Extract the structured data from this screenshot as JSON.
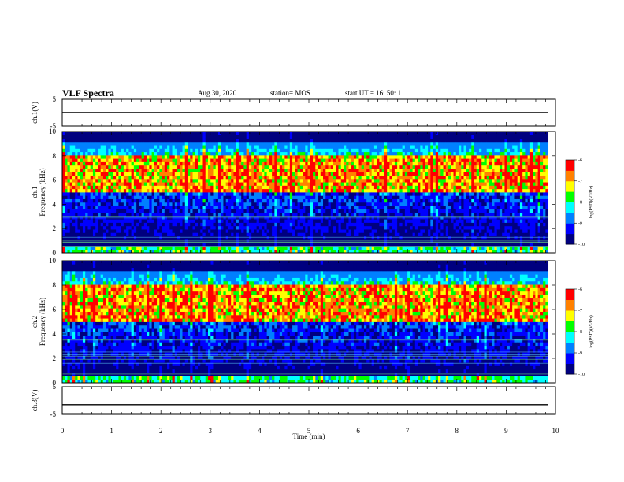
{
  "header": {
    "title": "VLF Spectra",
    "date": "Aug.30, 2020",
    "station": "station= MOS",
    "start": "start  UT =   16: 50: 1"
  },
  "chart_data": [
    {
      "type": "line",
      "panel": "waveform-ch1",
      "ylabel": "ch.1(V)",
      "ylim": [
        -5,
        5
      ],
      "yticks": [
        "5",
        "-5"
      ],
      "xlim": [
        0,
        10
      ],
      "series": [
        {
          "x": [
            0,
            9.85
          ],
          "values": [
            0,
            0
          ]
        }
      ]
    },
    {
      "type": "heatmap",
      "panel": "spectrogram-ch1",
      "ylabel": "ch.1\nFrequency (kHz)",
      "ylim": [
        0,
        10
      ],
      "yticks": [
        "0",
        "2",
        "4",
        "6",
        "8",
        "10"
      ],
      "xlim": [
        0,
        10
      ],
      "data_end_min": 9.85,
      "intense_band_khz": [
        5,
        8
      ],
      "colorbar": {
        "label": "log(PSD)(V²/Hz)",
        "range": [
          -10,
          -6
        ],
        "ticks": [
          "-6",
          "-7",
          "-8",
          "-9",
          "-10"
        ]
      }
    },
    {
      "type": "heatmap",
      "panel": "spectrogram-ch2",
      "ylabel": "ch.2\nFrequency (kHz)",
      "ylim": [
        0,
        10
      ],
      "yticks": [
        "0",
        "2",
        "4",
        "6",
        "8",
        "10"
      ],
      "xlim": [
        0,
        10
      ],
      "data_end_min": 9.85,
      "intense_band_khz": [
        5,
        8
      ],
      "colorbar": {
        "label": "log(PSD)(V²/Hz)",
        "range": [
          -10,
          -6
        ],
        "ticks": [
          "-6",
          "-7",
          "-8",
          "-9",
          "-10"
        ]
      }
    },
    {
      "type": "line",
      "panel": "waveform-ch3",
      "ylabel": "ch.3(V)",
      "ylim": [
        -5,
        5
      ],
      "yticks": [
        "5",
        "-5"
      ],
      "xlim": [
        0,
        10
      ],
      "xlabel": "Time  (min)",
      "xticks": [
        "0",
        "1",
        "2",
        "3",
        "4",
        "5",
        "6",
        "7",
        "8",
        "9",
        "10"
      ],
      "series": [
        {
          "x": [
            0,
            9.85
          ],
          "values": [
            -1.5,
            -1.5
          ]
        }
      ]
    }
  ],
  "colors": {
    "colormap": [
      "#00007f",
      "#0000ff",
      "#0080ff",
      "#00ffff",
      "#00ff00",
      "#ffff00",
      "#ff8000",
      "#ff0000",
      "#ffffff"
    ],
    "background": "#000000",
    "trace": "#000000"
  }
}
